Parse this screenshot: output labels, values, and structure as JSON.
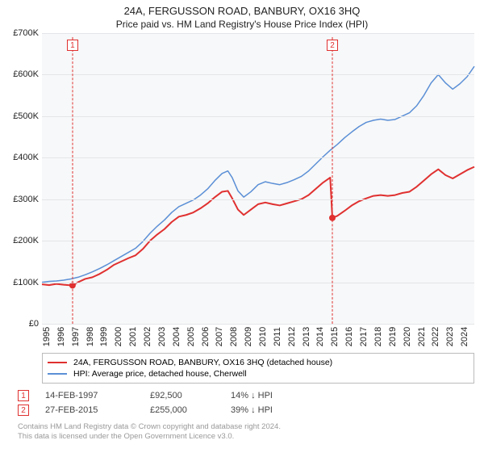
{
  "title": "24A, FERGUSSON ROAD, BANBURY, OX16 3HQ",
  "subtitle": "Price paid vs. HM Land Registry's House Price Index (HPI)",
  "chart": {
    "type": "line",
    "background_color": "#f7f8f9",
    "grid_color": "#e3e5e8",
    "y": {
      "min": 0,
      "max": 700000,
      "ticks": [
        0,
        100000,
        200000,
        300000,
        400000,
        500000,
        600000,
        700000
      ],
      "tick_labels": [
        "£0",
        "£100K",
        "£200K",
        "£300K",
        "£400K",
        "£500K",
        "£600K",
        "£700K"
      ],
      "label_fontsize": 11
    },
    "x": {
      "min": 1995,
      "max": 2025,
      "ticks": [
        1995,
        1996,
        1997,
        1998,
        1999,
        2000,
        2001,
        2002,
        2003,
        2004,
        2005,
        2006,
        2007,
        2008,
        2009,
        2010,
        2011,
        2012,
        2013,
        2014,
        2015,
        2016,
        2017,
        2018,
        2019,
        2020,
        2021,
        2022,
        2023,
        2024
      ],
      "label_fontsize": 11
    },
    "series": [
      {
        "name": "property",
        "label": "24A, FERGUSSON ROAD, BANBURY, OX16 3HQ (detached house)",
        "color": "#e03030",
        "line_width": 2,
        "points": [
          [
            1995.0,
            95000
          ],
          [
            1995.5,
            93000
          ],
          [
            1996.0,
            96000
          ],
          [
            1996.5,
            94000
          ],
          [
            1997.0,
            92500
          ],
          [
            1997.12,
            92500
          ],
          [
            1997.5,
            100000
          ],
          [
            1998.0,
            108000
          ],
          [
            1998.5,
            112000
          ],
          [
            1999.0,
            120000
          ],
          [
            1999.5,
            130000
          ],
          [
            2000.0,
            142000
          ],
          [
            2000.5,
            150000
          ],
          [
            2001.0,
            158000
          ],
          [
            2001.5,
            165000
          ],
          [
            2002.0,
            180000
          ],
          [
            2002.5,
            200000
          ],
          [
            2003.0,
            215000
          ],
          [
            2003.5,
            228000
          ],
          [
            2004.0,
            245000
          ],
          [
            2004.5,
            258000
          ],
          [
            2005.0,
            262000
          ],
          [
            2005.5,
            268000
          ],
          [
            2006.0,
            278000
          ],
          [
            2006.5,
            290000
          ],
          [
            2007.0,
            305000
          ],
          [
            2007.5,
            318000
          ],
          [
            2007.9,
            320000
          ],
          [
            2008.2,
            302000
          ],
          [
            2008.6,
            275000
          ],
          [
            2009.0,
            262000
          ],
          [
            2009.5,
            275000
          ],
          [
            2010.0,
            288000
          ],
          [
            2010.5,
            292000
          ],
          [
            2011.0,
            288000
          ],
          [
            2011.5,
            285000
          ],
          [
            2012.0,
            290000
          ],
          [
            2012.5,
            295000
          ],
          [
            2013.0,
            300000
          ],
          [
            2013.5,
            310000
          ],
          [
            2014.0,
            325000
          ],
          [
            2014.5,
            340000
          ],
          [
            2015.0,
            352000
          ],
          [
            2015.15,
            255000
          ],
          [
            2015.5,
            260000
          ],
          [
            2016.0,
            272000
          ],
          [
            2016.5,
            285000
          ],
          [
            2017.0,
            295000
          ],
          [
            2017.5,
            302000
          ],
          [
            2018.0,
            308000
          ],
          [
            2018.5,
            310000
          ],
          [
            2019.0,
            308000
          ],
          [
            2019.5,
            310000
          ],
          [
            2020.0,
            315000
          ],
          [
            2020.5,
            318000
          ],
          [
            2021.0,
            330000
          ],
          [
            2021.5,
            345000
          ],
          [
            2022.0,
            360000
          ],
          [
            2022.5,
            372000
          ],
          [
            2023.0,
            358000
          ],
          [
            2023.5,
            350000
          ],
          [
            2024.0,
            360000
          ],
          [
            2024.5,
            370000
          ],
          [
            2025.0,
            378000
          ]
        ]
      },
      {
        "name": "hpi",
        "label": "HPI: Average price, detached house, Cherwell",
        "color": "#5b8fd6",
        "line_width": 1.5,
        "points": [
          [
            1995.0,
            100000
          ],
          [
            1995.5,
            102000
          ],
          [
            1996.0,
            103000
          ],
          [
            1996.5,
            105000
          ],
          [
            1997.0,
            108000
          ],
          [
            1997.5,
            112000
          ],
          [
            1998.0,
            118000
          ],
          [
            1998.5,
            125000
          ],
          [
            1999.0,
            133000
          ],
          [
            1999.5,
            142000
          ],
          [
            2000.0,
            152000
          ],
          [
            2000.5,
            162000
          ],
          [
            2001.0,
            172000
          ],
          [
            2001.5,
            182000
          ],
          [
            2002.0,
            198000
          ],
          [
            2002.5,
            218000
          ],
          [
            2003.0,
            235000
          ],
          [
            2003.5,
            250000
          ],
          [
            2004.0,
            268000
          ],
          [
            2004.5,
            282000
          ],
          [
            2005.0,
            290000
          ],
          [
            2005.5,
            298000
          ],
          [
            2006.0,
            310000
          ],
          [
            2006.5,
            325000
          ],
          [
            2007.0,
            345000
          ],
          [
            2007.5,
            362000
          ],
          [
            2007.9,
            368000
          ],
          [
            2008.2,
            352000
          ],
          [
            2008.6,
            320000
          ],
          [
            2009.0,
            305000
          ],
          [
            2009.5,
            318000
          ],
          [
            2010.0,
            335000
          ],
          [
            2010.5,
            342000
          ],
          [
            2011.0,
            338000
          ],
          [
            2011.5,
            335000
          ],
          [
            2012.0,
            340000
          ],
          [
            2012.5,
            347000
          ],
          [
            2013.0,
            355000
          ],
          [
            2013.5,
            368000
          ],
          [
            2014.0,
            385000
          ],
          [
            2014.5,
            402000
          ],
          [
            2015.0,
            418000
          ],
          [
            2015.5,
            432000
          ],
          [
            2016.0,
            448000
          ],
          [
            2016.5,
            462000
          ],
          [
            2017.0,
            475000
          ],
          [
            2017.5,
            485000
          ],
          [
            2018.0,
            490000
          ],
          [
            2018.5,
            493000
          ],
          [
            2019.0,
            490000
          ],
          [
            2019.5,
            492000
          ],
          [
            2020.0,
            500000
          ],
          [
            2020.5,
            508000
          ],
          [
            2021.0,
            525000
          ],
          [
            2021.5,
            550000
          ],
          [
            2022.0,
            580000
          ],
          [
            2022.5,
            600000
          ],
          [
            2023.0,
            580000
          ],
          [
            2023.5,
            565000
          ],
          [
            2024.0,
            578000
          ],
          [
            2024.5,
            595000
          ],
          [
            2025.0,
            620000
          ]
        ]
      }
    ],
    "sale_markers": [
      {
        "n": 1,
        "x": 1997.12,
        "y": 92500,
        "color": "#e03030"
      },
      {
        "n": 2,
        "x": 2015.15,
        "y": 255000,
        "color": "#e03030"
      }
    ],
    "sale_dot_radius": 4
  },
  "legend": {
    "border_color": "#bbbbbb",
    "fontsize": 10.5
  },
  "sales": [
    {
      "n": "1",
      "date": "14-FEB-1997",
      "price": "£92,500",
      "delta": "14% ↓ HPI",
      "color": "#e03030"
    },
    {
      "n": "2",
      "date": "27-FEB-2015",
      "price": "£255,000",
      "delta": "39% ↓ HPI",
      "color": "#e03030"
    }
  ],
  "attribution": {
    "line1": "Contains HM Land Registry data © Crown copyright and database right 2024.",
    "line2": "This data is licensed under the Open Government Licence v3.0."
  }
}
